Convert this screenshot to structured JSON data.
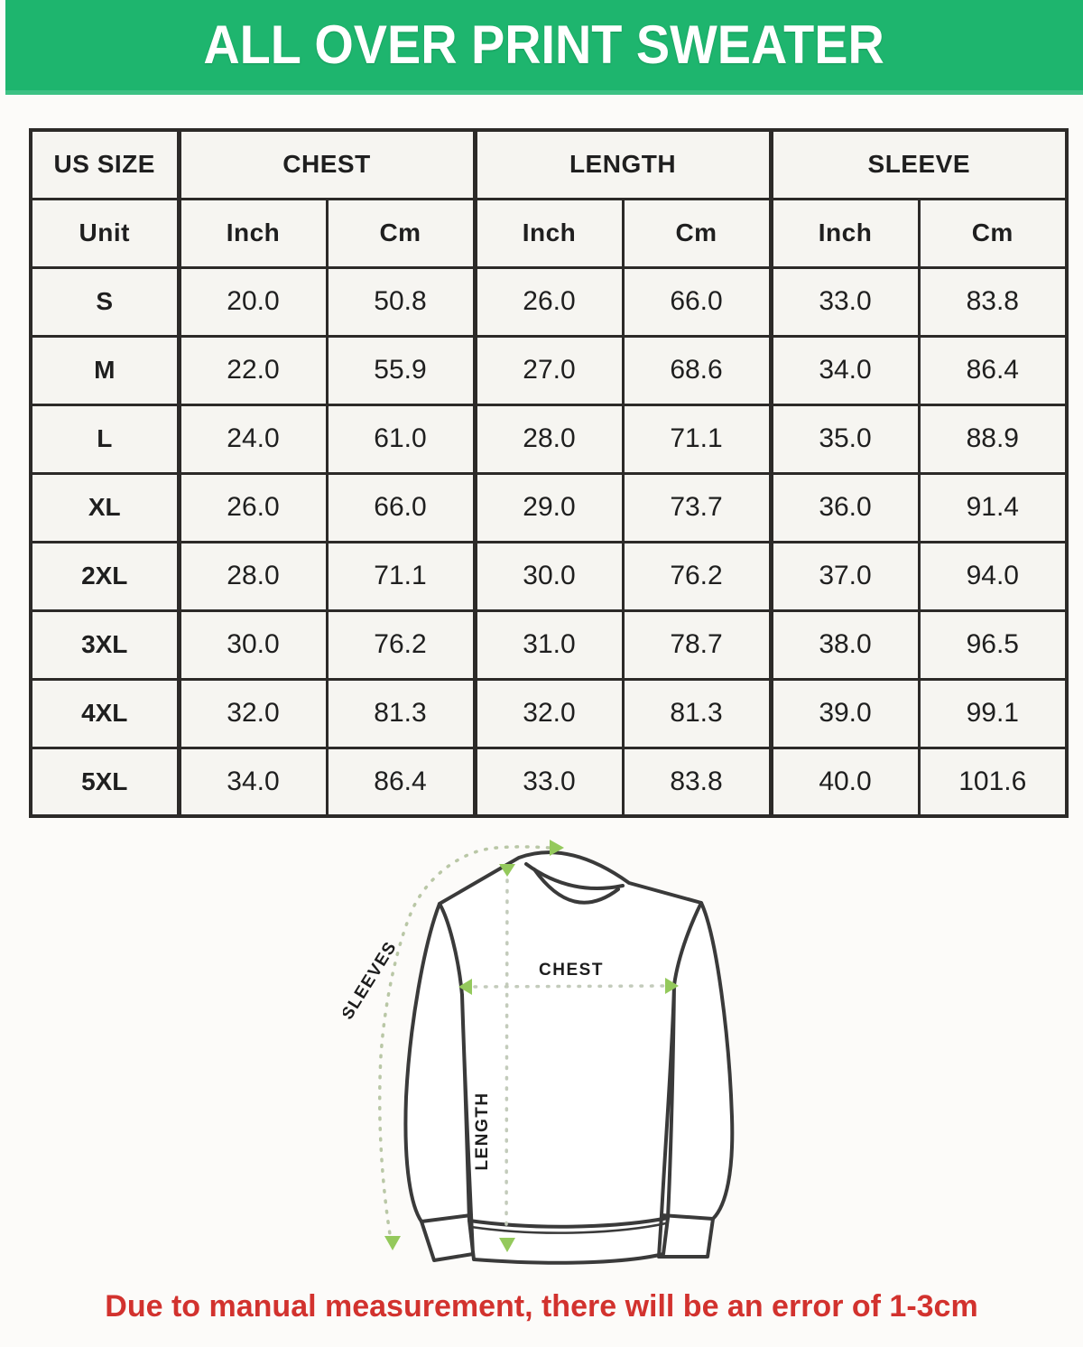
{
  "title": "ALL OVER PRINT SWEATER",
  "note": "Due to manual measurement, there will be an error of 1-3cm",
  "table": {
    "groups": [
      "US SIZE",
      "CHEST",
      "LENGTH",
      "SLEEVE"
    ],
    "units": [
      "Unit",
      "Inch",
      "Cm",
      "Inch",
      "Cm",
      "Inch",
      "Cm"
    ],
    "rows": [
      {
        "size": "S",
        "values": [
          "20.0",
          "50.8",
          "26.0",
          "66.0",
          "33.0",
          "83.8"
        ]
      },
      {
        "size": "M",
        "values": [
          "22.0",
          "55.9",
          "27.0",
          "68.6",
          "34.0",
          "86.4"
        ]
      },
      {
        "size": "L",
        "values": [
          "24.0",
          "61.0",
          "28.0",
          "71.1",
          "35.0",
          "88.9"
        ]
      },
      {
        "size": "XL",
        "values": [
          "26.0",
          "66.0",
          "29.0",
          "73.7",
          "36.0",
          "91.4"
        ]
      },
      {
        "size": "2XL",
        "values": [
          "28.0",
          "71.1",
          "30.0",
          "76.2",
          "37.0",
          "94.0"
        ]
      },
      {
        "size": "3XL",
        "values": [
          "30.0",
          "76.2",
          "31.0",
          "78.7",
          "38.0",
          "96.5"
        ]
      },
      {
        "size": "4XL",
        "values": [
          "32.0",
          "81.3",
          "32.0",
          "81.3",
          "39.0",
          "99.1"
        ]
      },
      {
        "size": "5XL",
        "values": [
          "34.0",
          "86.4",
          "33.0",
          "83.8",
          "40.0",
          "101.6"
        ]
      }
    ]
  },
  "diagram": {
    "chest_label": "CHEST",
    "length_label": "LENGTH",
    "sleeves_label": "SLEEVES"
  },
  "colors": {
    "banner_green": "#1eb56e",
    "note_red": "#d2322e",
    "arrow_green": "#94c95c",
    "dotted_line": "#c3cbbb",
    "cell_bg": "#f6f5f1",
    "border_dark": "#2c2a28"
  },
  "chart_data": {
    "type": "table",
    "title": "ALL OVER PRINT SWEATER",
    "column_groups": [
      "US SIZE",
      "CHEST",
      "LENGTH",
      "SLEEVE"
    ],
    "columns": [
      "Unit",
      "Chest Inch",
      "Chest Cm",
      "Length Inch",
      "Length Cm",
      "Sleeve Inch",
      "Sleeve Cm"
    ],
    "rows": [
      [
        "S",
        20.0,
        50.8,
        26.0,
        66.0,
        33.0,
        83.8
      ],
      [
        "M",
        22.0,
        55.9,
        27.0,
        68.6,
        34.0,
        86.4
      ],
      [
        "L",
        24.0,
        61.0,
        28.0,
        71.1,
        35.0,
        88.9
      ],
      [
        "XL",
        26.0,
        66.0,
        29.0,
        73.7,
        36.0,
        91.4
      ],
      [
        "2XL",
        28.0,
        71.1,
        30.0,
        76.2,
        37.0,
        94.0
      ],
      [
        "3XL",
        30.0,
        76.2,
        31.0,
        78.7,
        38.0,
        96.5
      ],
      [
        "4XL",
        32.0,
        81.3,
        32.0,
        81.3,
        39.0,
        99.1
      ],
      [
        "5XL",
        34.0,
        86.4,
        33.0,
        83.8,
        40.0,
        101.6
      ]
    ],
    "note": "Due to manual measurement, there will be an error of 1-3cm"
  }
}
